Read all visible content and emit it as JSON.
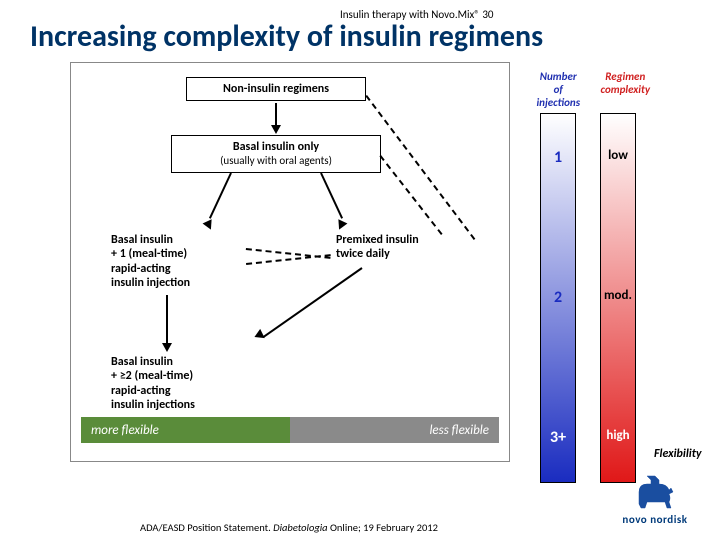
{
  "header": {
    "subtitle": "Insulin therapy with Novo.Mix® 30",
    "title": "Increasing complexity of insulin regimens"
  },
  "boxes": {
    "noninsulin": "Non-insulin regimens",
    "basal_bold": "Basal insulin only",
    "basal_sub": "(usually with oral agents)"
  },
  "blocks": {
    "basal_plus1": "Basal insulin\n+ 1 (meal-time)\nrapid-acting\ninsulin injection",
    "premixed": "Premixed insulin\ntwice daily",
    "basal_plus2": "Basal insulin\n+ ≥2 (meal-time)\nrapid-acting\ninsulin injections"
  },
  "flexbar": {
    "left": "more flexible",
    "right": "less flexible"
  },
  "gradients": {
    "injections": {
      "label": "Number of\ninjections",
      "label_color": "#2030b0",
      "top_color": "#ffffff",
      "bottom_color": "#1a2cc0",
      "values": [
        {
          "text": "1",
          "pct": 12
        },
        {
          "text": "2",
          "pct": 50
        },
        {
          "text": "3+",
          "pct": 88
        }
      ]
    },
    "complexity": {
      "label": "Regimen\ncomplexity",
      "label_color": "#d02020",
      "top_color": "#ffffff",
      "bottom_color": "#e01818",
      "values": [
        {
          "text": "low",
          "pct": 12
        },
        {
          "text": "mod.",
          "pct": 50
        },
        {
          "text": "high",
          "pct": 88
        }
      ]
    }
  },
  "flexibility_label": "Flexibility",
  "citation": {
    "pre": "ADA/EASD Position Statement. ",
    "ital": "Diabetologia ",
    "post": "Online; 19 February 2012"
  },
  "logo_text": "novo nordisk"
}
